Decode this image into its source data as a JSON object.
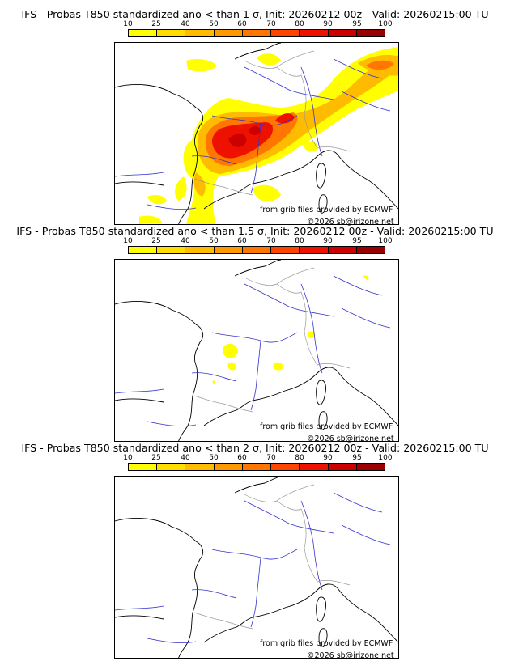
{
  "scale": {
    "labels": [
      "10",
      "25",
      "40",
      "50",
      "60",
      "70",
      "80",
      "90",
      "95",
      "100"
    ],
    "colors": [
      "#ffff00",
      "#ffdd00",
      "#ffbb00",
      "#ff9900",
      "#ff7700",
      "#ff4400",
      "#ee1100",
      "#cc0000",
      "#990000"
    ]
  },
  "source_credit": "from grib files provided by ECMWF",
  "copyright": "©2026 sb@irizone.net",
  "colors": {
    "coast": "#000000",
    "rivers": "#3333cc",
    "borders": "#999999"
  },
  "panels": [
    {
      "title": "IFS - Probas T850  standardized ano < than 1 σ, Init: 20260212 00z - Valid: 20260215:00 TU"
    },
    {
      "title": "IFS - Probas T850  standardized ano < than 1.5 σ, Init: 20260212 00z - Valid: 20260215:00 TU"
    },
    {
      "title": "IFS - Probas T850  standardized ano < than 2 σ, Init: 20260212 00z - Valid: 20260215:00 TU"
    }
  ]
}
